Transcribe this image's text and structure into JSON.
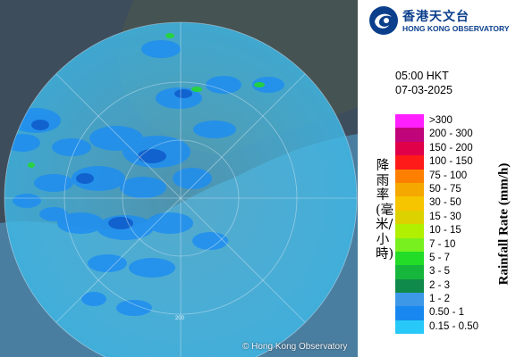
{
  "header": {
    "logo_cn": "香港天文台",
    "logo_en": "HONG KONG OBSERVATORY",
    "logo_icon": "hko-swirl-icon"
  },
  "timestamp": {
    "time": "05:00 HKT",
    "date": "07-03-2025"
  },
  "legend": {
    "title_en": "Rainfall Rate (mm/h)",
    "title_cn": "降雨率(毫米/小時)",
    "items": [
      {
        "label": ">300",
        "color": "#ff1fff"
      },
      {
        "label": "200 - 300",
        "color": "#c0057a"
      },
      {
        "label": "150 - 200",
        "color": "#e0004a"
      },
      {
        "label": "100 - 150",
        "color": "#ff1a1a"
      },
      {
        "label": "75 - 100",
        "color": "#ff8000"
      },
      {
        "label": "50 - 75",
        "color": "#f5a800"
      },
      {
        "label": "30 - 50",
        "color": "#f7c400"
      },
      {
        "label": "15 - 30",
        "color": "#dcd200"
      },
      {
        "label": "10 - 15",
        "color": "#b0f000"
      },
      {
        "label": "7 - 10",
        "color": "#78f020"
      },
      {
        "label": "5 - 7",
        "color": "#22dc28"
      },
      {
        "label": "3 - 5",
        "color": "#16b63c"
      },
      {
        "label": "2 - 3",
        "color": "#108a4a"
      },
      {
        "label": "1 - 2",
        "color": "#3d98e8"
      },
      {
        "label": "0.50 - 1",
        "color": "#1888f0"
      },
      {
        "label": "0.15 - 0.50",
        "color": "#28c8f8"
      }
    ]
  },
  "map": {
    "copyright": "© Hong Kong Observatory",
    "range_ring_labels": [
      "200"
    ]
  },
  "colors": {
    "land": "#3b4a5a",
    "sea": "#4a7ea0",
    "radar_coverage": "#48c0ea"
  }
}
